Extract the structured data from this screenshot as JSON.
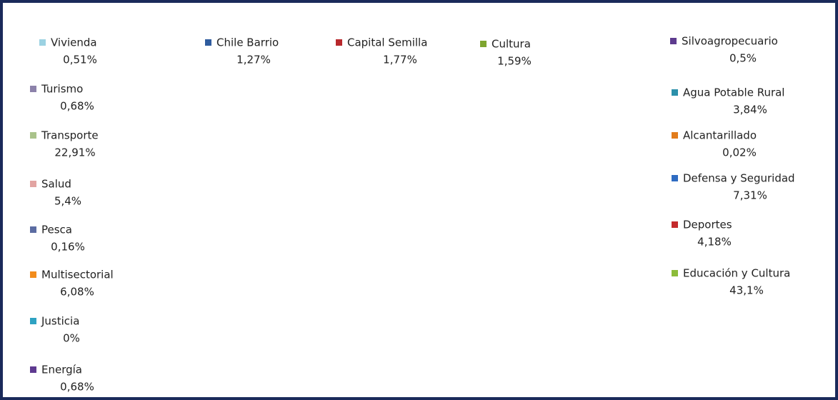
{
  "chart_data": {
    "type": "pie",
    "categories": [
      "Chile Barrio",
      "Capital Semilla",
      "Cultura",
      "Silvoagropecuario",
      "Agua Potable Rural",
      "Alcantarillado",
      "Defensa y Seguridad",
      "Deportes",
      "Educación y Cultura",
      "Energía",
      "Justicia",
      "Multisectorial",
      "Pesca",
      "Salud",
      "Transporte",
      "Turismo",
      "Vivienda"
    ],
    "values": [
      1.27,
      1.77,
      1.59,
      0.5,
      3.84,
      0.02,
      7.31,
      4.18,
      43.1,
      0.68,
      0,
      6.08,
      0.16,
      5.4,
      22.91,
      0.68,
      0.51
    ],
    "value_labels": [
      "1,27%",
      "1,77%",
      "1,59%",
      "0,5%",
      "3,84%",
      "0,02%",
      "7,31%",
      "4,18%",
      "43,1%",
      "0,68%",
      "0%",
      "6,08%",
      "0,16%",
      "5,4%",
      "22,91%",
      "0,68%",
      "0,51%"
    ],
    "colors": [
      "#2f5c9e",
      "#b8282c",
      "#7ea52f",
      "#5d3b8e",
      "#2b90aa",
      "#e27c1b",
      "#2f6cc2",
      "#c42a2c",
      "#8cbc3a",
      "#5e3a90",
      "#2ea2c2",
      "#f28c1c",
      "#5b6ca2",
      "#e2a4a2",
      "#a9c28a",
      "#8c82aa",
      "#9cd2e2"
    ]
  }
}
